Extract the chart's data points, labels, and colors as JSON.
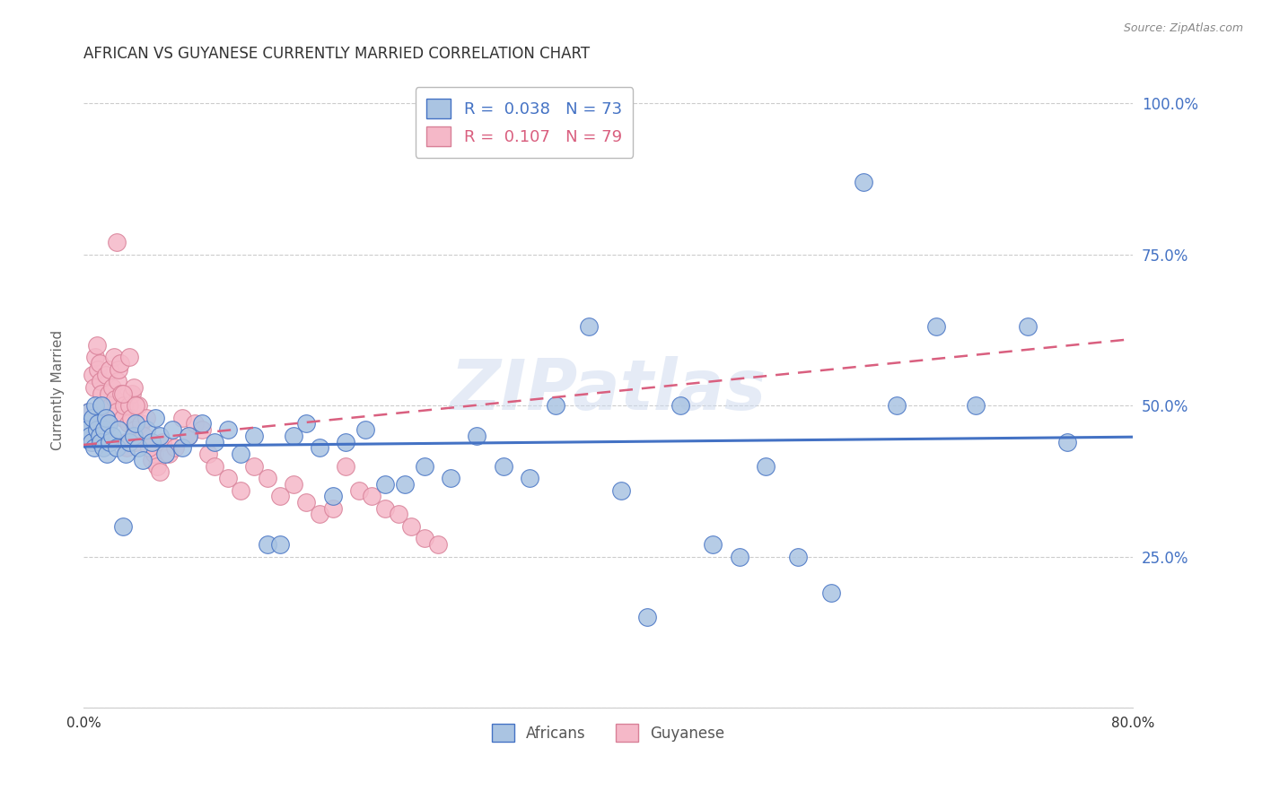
{
  "title": "AFRICAN VS GUYANESE CURRENTLY MARRIED CORRELATION CHART",
  "source": "Source: ZipAtlas.com",
  "ylabel": "Currently Married",
  "xlim": [
    0.0,
    0.8
  ],
  "ylim": [
    0.0,
    1.05
  ],
  "xtick_positions": [
    0.0,
    0.1,
    0.2,
    0.3,
    0.4,
    0.5,
    0.6,
    0.7,
    0.8
  ],
  "xticklabels": [
    "0.0%",
    "",
    "",
    "",
    "",
    "",
    "",
    "",
    "80.0%"
  ],
  "ytick_positions": [
    0.0,
    0.25,
    0.5,
    0.75,
    1.0
  ],
  "yticklabels_right": [
    "",
    "25.0%",
    "50.0%",
    "75.0%",
    "100.0%"
  ],
  "africans_R": 0.038,
  "africans_N": 73,
  "guyanese_R": 0.107,
  "guyanese_N": 79,
  "dot_color_africans": "#aac4e2",
  "dot_color_guyanese": "#f5b8c8",
  "line_color_africans": "#4472c4",
  "line_color_guyanese": "#d95f7f",
  "legend_label_africans": "Africans",
  "legend_label_guyanese": "Guyanese",
  "africans_x": [
    0.002,
    0.003,
    0.004,
    0.005,
    0.006,
    0.007,
    0.008,
    0.009,
    0.01,
    0.011,
    0.012,
    0.013,
    0.014,
    0.015,
    0.016,
    0.017,
    0.018,
    0.019,
    0.02,
    0.022,
    0.025,
    0.027,
    0.03,
    0.032,
    0.035,
    0.038,
    0.04,
    0.042,
    0.045,
    0.048,
    0.052,
    0.055,
    0.058,
    0.062,
    0.068,
    0.075,
    0.08,
    0.09,
    0.1,
    0.11,
    0.12,
    0.13,
    0.14,
    0.15,
    0.16,
    0.17,
    0.18,
    0.19,
    0.2,
    0.215,
    0.23,
    0.245,
    0.26,
    0.28,
    0.3,
    0.32,
    0.34,
    0.36,
    0.385,
    0.41,
    0.43,
    0.455,
    0.48,
    0.5,
    0.52,
    0.545,
    0.57,
    0.595,
    0.62,
    0.65,
    0.68,
    0.72,
    0.75
  ],
  "africans_y": [
    0.47,
    0.46,
    0.49,
    0.45,
    0.44,
    0.48,
    0.43,
    0.5,
    0.46,
    0.47,
    0.45,
    0.44,
    0.5,
    0.43,
    0.46,
    0.48,
    0.42,
    0.47,
    0.44,
    0.45,
    0.43,
    0.46,
    0.3,
    0.42,
    0.44,
    0.45,
    0.47,
    0.43,
    0.41,
    0.46,
    0.44,
    0.48,
    0.45,
    0.42,
    0.46,
    0.43,
    0.45,
    0.47,
    0.44,
    0.46,
    0.42,
    0.45,
    0.27,
    0.27,
    0.45,
    0.47,
    0.43,
    0.35,
    0.44,
    0.46,
    0.37,
    0.37,
    0.4,
    0.38,
    0.45,
    0.4,
    0.38,
    0.5,
    0.63,
    0.36,
    0.15,
    0.5,
    0.27,
    0.25,
    0.4,
    0.25,
    0.19,
    0.87,
    0.5,
    0.63,
    0.5,
    0.63,
    0.44
  ],
  "guyanese_x": [
    0.002,
    0.003,
    0.004,
    0.005,
    0.006,
    0.007,
    0.008,
    0.009,
    0.01,
    0.011,
    0.012,
    0.013,
    0.014,
    0.015,
    0.016,
    0.017,
    0.018,
    0.019,
    0.02,
    0.021,
    0.022,
    0.023,
    0.024,
    0.025,
    0.026,
    0.027,
    0.028,
    0.029,
    0.03,
    0.031,
    0.032,
    0.033,
    0.034,
    0.035,
    0.036,
    0.037,
    0.038,
    0.039,
    0.04,
    0.042,
    0.044,
    0.046,
    0.048,
    0.05,
    0.052,
    0.054,
    0.056,
    0.058,
    0.06,
    0.065,
    0.07,
    0.075,
    0.08,
    0.085,
    0.09,
    0.095,
    0.1,
    0.11,
    0.12,
    0.13,
    0.14,
    0.15,
    0.16,
    0.17,
    0.18,
    0.19,
    0.2,
    0.21,
    0.22,
    0.23,
    0.24,
    0.25,
    0.26,
    0.27,
    0.025,
    0.03,
    0.035,
    0.04,
    0.05
  ],
  "guyanese_y": [
    0.47,
    0.46,
    0.49,
    0.45,
    0.44,
    0.55,
    0.53,
    0.58,
    0.6,
    0.56,
    0.57,
    0.54,
    0.52,
    0.48,
    0.5,
    0.55,
    0.47,
    0.52,
    0.56,
    0.5,
    0.53,
    0.58,
    0.51,
    0.49,
    0.54,
    0.56,
    0.57,
    0.52,
    0.48,
    0.5,
    0.44,
    0.43,
    0.47,
    0.5,
    0.48,
    0.52,
    0.53,
    0.46,
    0.44,
    0.5,
    0.47,
    0.45,
    0.48,
    0.43,
    0.41,
    0.42,
    0.4,
    0.39,
    0.44,
    0.42,
    0.43,
    0.48,
    0.45,
    0.47,
    0.46,
    0.42,
    0.4,
    0.38,
    0.36,
    0.4,
    0.38,
    0.35,
    0.37,
    0.34,
    0.32,
    0.33,
    0.4,
    0.36,
    0.35,
    0.33,
    0.32,
    0.3,
    0.28,
    0.27,
    0.77,
    0.52,
    0.58,
    0.5,
    0.43
  ],
  "watermark": "ZIPatlas",
  "background_color": "#ffffff",
  "grid_color": "#cccccc",
  "africans_line_x": [
    0.0,
    0.8
  ],
  "africans_line_y": [
    0.432,
    0.448
  ],
  "guyanese_line_x": [
    0.0,
    0.8
  ],
  "guyanese_line_y": [
    0.435,
    0.61
  ]
}
